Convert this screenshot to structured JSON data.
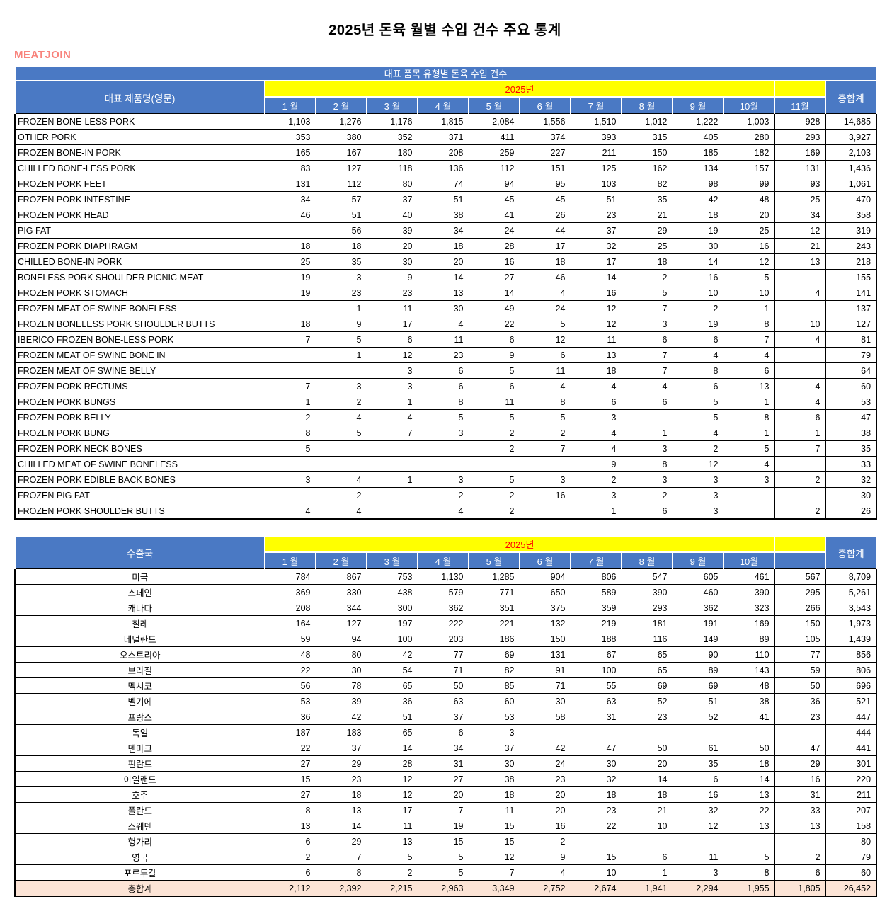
{
  "page": {
    "title": "2025년 돈육 월별 수입 건수 주요 통계",
    "logo": "MEATJOIN"
  },
  "colors": {
    "header_blue": "#4a79c4",
    "band_yellow": "#ffff00",
    "year_text_red": "#ff0000",
    "logo_pink": "#f8837c",
    "grand_total_bg": "#fce4d6"
  },
  "table1": {
    "title": "대표 품목 유형별 돈육 수입 건수",
    "name_header": "대표 제품명(영문)",
    "year_label": "2025년",
    "total_header": "총합계",
    "months": [
      "1 월",
      "2 월",
      "3 월",
      "4 월",
      "5 월",
      "6 월",
      "7 월",
      "8 월",
      "9 월",
      "10월",
      "11월"
    ],
    "rows": [
      {
        "name": "FROZEN BONE-LESS PORK",
        "values": [
          "1,103",
          "1,276",
          "1,176",
          "1,815",
          "2,084",
          "1,556",
          "1,510",
          "1,012",
          "1,222",
          "1,003",
          "928"
        ],
        "total": "14,685"
      },
      {
        "name": "OTHER PORK",
        "values": [
          "353",
          "380",
          "352",
          "371",
          "411",
          "374",
          "393",
          "315",
          "405",
          "280",
          "293"
        ],
        "total": "3,927"
      },
      {
        "name": "FROZEN BONE-IN PORK",
        "values": [
          "165",
          "167",
          "180",
          "208",
          "259",
          "227",
          "211",
          "150",
          "185",
          "182",
          "169"
        ],
        "total": "2,103"
      },
      {
        "name": "CHILLED BONE-LESS PORK",
        "values": [
          "83",
          "127",
          "118",
          "136",
          "112",
          "151",
          "125",
          "162",
          "134",
          "157",
          "131"
        ],
        "total": "1,436"
      },
      {
        "name": "FROZEN PORK FEET",
        "values": [
          "131",
          "112",
          "80",
          "74",
          "94",
          "95",
          "103",
          "82",
          "98",
          "99",
          "93"
        ],
        "total": "1,061"
      },
      {
        "name": "FROZEN PORK INTESTINE",
        "values": [
          "34",
          "57",
          "37",
          "51",
          "45",
          "45",
          "51",
          "35",
          "42",
          "48",
          "25"
        ],
        "total": "470"
      },
      {
        "name": "FROZEN PORK HEAD",
        "values": [
          "46",
          "51",
          "40",
          "38",
          "41",
          "26",
          "23",
          "21",
          "18",
          "20",
          "34"
        ],
        "total": "358"
      },
      {
        "name": "PIG FAT",
        "values": [
          "",
          "56",
          "39",
          "34",
          "24",
          "44",
          "37",
          "29",
          "19",
          "25",
          "12"
        ],
        "total": "319"
      },
      {
        "name": "FROZEN PORK DIAPHRAGM",
        "values": [
          "18",
          "18",
          "20",
          "18",
          "28",
          "17",
          "32",
          "25",
          "30",
          "16",
          "21"
        ],
        "total": "243"
      },
      {
        "name": "CHILLED BONE-IN PORK",
        "values": [
          "25",
          "35",
          "30",
          "20",
          "16",
          "18",
          "17",
          "18",
          "14",
          "12",
          "13"
        ],
        "total": "218"
      },
      {
        "name": "BONELESS PORK SHOULDER PICNIC MEAT",
        "values": [
          "19",
          "3",
          "9",
          "14",
          "27",
          "46",
          "14",
          "2",
          "16",
          "5",
          ""
        ],
        "total": "155"
      },
      {
        "name": "FROZEN PORK STOMACH",
        "values": [
          "19",
          "23",
          "23",
          "13",
          "14",
          "4",
          "16",
          "5",
          "10",
          "10",
          "4"
        ],
        "total": "141"
      },
      {
        "name": "FROZEN MEAT OF SWINE BONELESS",
        "values": [
          "",
          "1",
          "11",
          "30",
          "49",
          "24",
          "12",
          "7",
          "2",
          "1",
          ""
        ],
        "total": "137"
      },
      {
        "name": "FROZEN BONELESS PORK SHOULDER BUTTS",
        "values": [
          "18",
          "9",
          "17",
          "4",
          "22",
          "5",
          "12",
          "3",
          "19",
          "8",
          "10"
        ],
        "total": "127"
      },
      {
        "name": "IBERICO FROZEN BONE-LESS PORK",
        "values": [
          "7",
          "5",
          "6",
          "11",
          "6",
          "12",
          "11",
          "6",
          "6",
          "7",
          "4"
        ],
        "total": "81"
      },
      {
        "name": "FROZEN MEAT OF SWINE BONE IN",
        "values": [
          "",
          "1",
          "12",
          "23",
          "9",
          "6",
          "13",
          "7",
          "4",
          "4",
          ""
        ],
        "total": "79"
      },
      {
        "name": "FROZEN MEAT OF SWINE BELLY",
        "values": [
          "",
          "",
          "3",
          "6",
          "5",
          "11",
          "18",
          "7",
          "8",
          "6",
          ""
        ],
        "total": "64"
      },
      {
        "name": "FROZEN PORK RECTUMS",
        "values": [
          "7",
          "3",
          "3",
          "6",
          "6",
          "4",
          "4",
          "4",
          "6",
          "13",
          "4"
        ],
        "total": "60"
      },
      {
        "name": "FROZEN PORK BUNGS",
        "values": [
          "1",
          "2",
          "1",
          "8",
          "11",
          "8",
          "6",
          "6",
          "5",
          "1",
          "4"
        ],
        "total": "53"
      },
      {
        "name": "FROZEN PORK BELLY",
        "values": [
          "2",
          "4",
          "4",
          "5",
          "5",
          "5",
          "3",
          "",
          "5",
          "8",
          "6"
        ],
        "total": "47"
      },
      {
        "name": "FROZEN PORK BUNG",
        "values": [
          "8",
          "5",
          "7",
          "3",
          "2",
          "2",
          "4",
          "1",
          "4",
          "1",
          "1"
        ],
        "total": "38"
      },
      {
        "name": "FROZEN PORK NECK BONES",
        "values": [
          "5",
          "",
          "",
          "",
          "2",
          "7",
          "4",
          "3",
          "2",
          "5",
          "7"
        ],
        "total": "35"
      },
      {
        "name": "CHILLED MEAT OF SWINE BONELESS",
        "values": [
          "",
          "",
          "",
          "",
          "",
          "",
          "9",
          "8",
          "12",
          "4",
          ""
        ],
        "total": "33"
      },
      {
        "name": "FROZEN PORK EDIBLE BACK BONES",
        "values": [
          "3",
          "4",
          "1",
          "3",
          "5",
          "3",
          "2",
          "3",
          "3",
          "3",
          "2"
        ],
        "total": "32"
      },
      {
        "name": "FROZEN PIG FAT",
        "values": [
          "",
          "2",
          "",
          "2",
          "2",
          "16",
          "3",
          "2",
          "3",
          "",
          ""
        ],
        "total": "30"
      },
      {
        "name": "FROZEN PORK SHOULDER BUTTS",
        "values": [
          "4",
          "4",
          "",
          "4",
          "2",
          "",
          "1",
          "6",
          "3",
          "",
          "2"
        ],
        "total": "26"
      }
    ]
  },
  "table2": {
    "name_header": "수출국",
    "year_label": "2025년",
    "total_header": "총합계",
    "months": [
      "1 월",
      "2 월",
      "3 월",
      "4 월",
      "5 월",
      "6 월",
      "7 월",
      "8 월",
      "9 월",
      "10월",
      ""
    ],
    "rows": [
      {
        "name": "미국",
        "values": [
          "784",
          "867",
          "753",
          "1,130",
          "1,285",
          "904",
          "806",
          "547",
          "605",
          "461",
          "567"
        ],
        "total": "8,709"
      },
      {
        "name": "스페인",
        "values": [
          "369",
          "330",
          "438",
          "579",
          "771",
          "650",
          "589",
          "390",
          "460",
          "390",
          "295"
        ],
        "total": "5,261"
      },
      {
        "name": "캐나다",
        "values": [
          "208",
          "344",
          "300",
          "362",
          "351",
          "375",
          "359",
          "293",
          "362",
          "323",
          "266"
        ],
        "total": "3,543"
      },
      {
        "name": "칠레",
        "values": [
          "164",
          "127",
          "197",
          "222",
          "221",
          "132",
          "219",
          "181",
          "191",
          "169",
          "150"
        ],
        "total": "1,973"
      },
      {
        "name": "네덜란드",
        "values": [
          "59",
          "94",
          "100",
          "203",
          "186",
          "150",
          "188",
          "116",
          "149",
          "89",
          "105"
        ],
        "total": "1,439"
      },
      {
        "name": "오스트리아",
        "values": [
          "48",
          "80",
          "42",
          "77",
          "69",
          "131",
          "67",
          "65",
          "90",
          "110",
          "77"
        ],
        "total": "856"
      },
      {
        "name": "브라질",
        "values": [
          "22",
          "30",
          "54",
          "71",
          "82",
          "91",
          "100",
          "65",
          "89",
          "143",
          "59"
        ],
        "total": "806"
      },
      {
        "name": "멕시코",
        "values": [
          "56",
          "78",
          "65",
          "50",
          "85",
          "71",
          "55",
          "69",
          "69",
          "48",
          "50"
        ],
        "total": "696"
      },
      {
        "name": "벨기에",
        "values": [
          "53",
          "39",
          "36",
          "63",
          "60",
          "30",
          "63",
          "52",
          "51",
          "38",
          "36"
        ],
        "total": "521"
      },
      {
        "name": "프랑스",
        "values": [
          "36",
          "42",
          "51",
          "37",
          "53",
          "58",
          "31",
          "23",
          "52",
          "41",
          "23"
        ],
        "total": "447"
      },
      {
        "name": "독일",
        "values": [
          "187",
          "183",
          "65",
          "6",
          "3",
          "",
          "",
          "",
          "",
          "",
          ""
        ],
        "total": "444"
      },
      {
        "name": "덴마크",
        "values": [
          "22",
          "37",
          "14",
          "34",
          "37",
          "42",
          "47",
          "50",
          "61",
          "50",
          "47"
        ],
        "total": "441"
      },
      {
        "name": "핀란드",
        "values": [
          "27",
          "29",
          "28",
          "31",
          "30",
          "24",
          "30",
          "20",
          "35",
          "18",
          "29"
        ],
        "total": "301"
      },
      {
        "name": "아일랜드",
        "values": [
          "15",
          "23",
          "12",
          "27",
          "38",
          "23",
          "32",
          "14",
          "6",
          "14",
          "16"
        ],
        "total": "220"
      },
      {
        "name": "호주",
        "values": [
          "27",
          "18",
          "12",
          "20",
          "18",
          "20",
          "18",
          "18",
          "16",
          "13",
          "31"
        ],
        "total": "211"
      },
      {
        "name": "폴란드",
        "values": [
          "8",
          "13",
          "17",
          "7",
          "11",
          "20",
          "23",
          "21",
          "32",
          "22",
          "33"
        ],
        "total": "207"
      },
      {
        "name": "스웨덴",
        "values": [
          "13",
          "14",
          "11",
          "19",
          "15",
          "16",
          "22",
          "10",
          "12",
          "13",
          "13"
        ],
        "total": "158"
      },
      {
        "name": "헝가리",
        "values": [
          "6",
          "29",
          "13",
          "15",
          "15",
          "2",
          "",
          "",
          "",
          "",
          ""
        ],
        "total": "80"
      },
      {
        "name": "영국",
        "values": [
          "2",
          "7",
          "5",
          "5",
          "12",
          "9",
          "15",
          "6",
          "11",
          "5",
          "2"
        ],
        "total": "79"
      },
      {
        "name": "포르투갈",
        "values": [
          "6",
          "8",
          "2",
          "5",
          "7",
          "4",
          "10",
          "1",
          "3",
          "8",
          "6"
        ],
        "total": "60"
      },
      {
        "name": "총합계",
        "is_total": true,
        "values": [
          "2,112",
          "2,392",
          "2,215",
          "2,963",
          "3,349",
          "2,752",
          "2,674",
          "1,941",
          "2,294",
          "1,955",
          "1,805"
        ],
        "total": "26,452"
      }
    ]
  }
}
